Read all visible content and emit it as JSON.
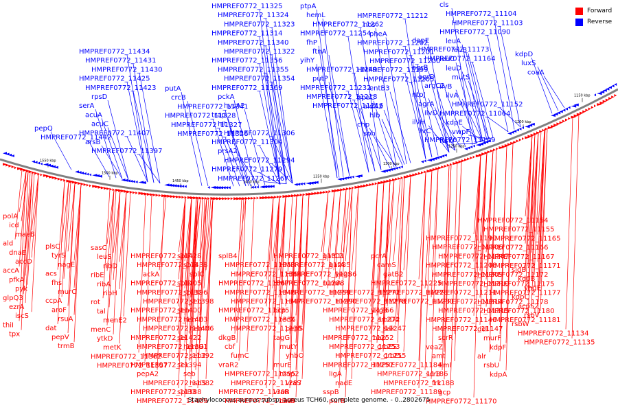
{
  "caption": "Staphylococcus aureus subsp. aureus TCH60, complete genome. - 0..2802675",
  "legend": [
    {
      "label": "Forward",
      "color": "#ff0000"
    },
    {
      "label": "Reverse",
      "color": "#0000ff"
    }
  ],
  "colors": {
    "forward": "#ff0000",
    "reverse": "#0000ff",
    "backbone": "#808080"
  },
  "ticks": [
    "1550 kbp",
    "1500 kbp",
    "1450 kbp",
    "1400 kbp",
    "1350 kbp",
    "1300 kbp",
    "1250 kbp",
    "1200 kbp",
    "1150 kbp"
  ],
  "reverse_labels": [
    "pepQ",
    "HMPREF0772_11442",
    "HMPREF0772_11434",
    "HMPREF0772_11431",
    "HMPREF0772_11430",
    "HMPREF0772_11425",
    "HMPREF0772_11423",
    "rpsD",
    "serA",
    "acuA",
    "acuC",
    "HMPREF0772_11407",
    "arsB",
    "HMPREF0772_11397",
    "putA",
    "crcB",
    "HMPREF0772_11341",
    "HMPREF0772_11328",
    "HMPREF0772_11327",
    "HMPREF0772_11326",
    "HMPREF0772_11325",
    "HMPREF0772_11324",
    "HMPREF0772_11323",
    "HMPREF0772_11314",
    "HMPREF0772_11340",
    "HMPREF0772_11322",
    "HMPREF0772_11356",
    "HMPREF0772_11355",
    "HMPREF0772_11354",
    "HMPREF0772_11369",
    "pckA",
    "hysA2",
    "trap",
    "hit",
    "HMPREF0772_11306",
    "HMPREF0772_11304",
    "prsA2",
    "HMPREF0772_11294",
    "HMPREF0772_11279",
    "HMPREF0772_11267",
    "ptpA",
    "hemL",
    "HMPREF0772_11262",
    "HMPREF0772_11254",
    "fhP",
    "ftnA",
    "yihY",
    "HMPREF0772_11249",
    "putP",
    "HMPREF0772_11232",
    "HMPREF0772_11218",
    "HMPREF0772_11216",
    "HMPREF0772_11212",
    "nos",
    "pheA",
    "HMPREF0772_11202",
    "HMPREF0772_11201",
    "HMPREF0772_11200",
    "HMPREF0772_11199",
    "HMPREF0772_11205",
    "entB3",
    "ppaC",
    "aldA2",
    "hlb",
    "chp",
    "sph",
    "dapE",
    "HMPREF0772_11173",
    "HMPREF0772_11164",
    "agrB",
    "agrD",
    "argC2",
    "ntpJ",
    "agrA",
    "ilvD",
    "ilvH",
    "ilvC",
    "HMPREF0772_11109",
    "cls",
    "HMPREF0772_11104",
    "HMPREF0772_11103",
    "HMPREF0772_11090",
    "leuA",
    "leuB",
    "leuC",
    "leuD",
    "mutS",
    "ilvB",
    "ilvA",
    "HMPREF0772_11152",
    "HMPREF0772_11064",
    "kdpE",
    "vwpF",
    "ftsW",
    "kdpD",
    "luxS",
    "coaA"
  ],
  "forward_labels": [
    "polA",
    "icd",
    "maeB",
    "ald",
    "dnaE",
    "accD",
    "accA",
    "pfkA",
    "pyk",
    "glpQ3",
    "ezrA",
    "iscS",
    "thiI",
    "tpx",
    "plsC",
    "tyrS",
    "nagE",
    "acs",
    "fhs",
    "murC",
    "ccpA",
    "aroF",
    "rsuA",
    "dat",
    "pepV",
    "trmB",
    "sasC",
    "leuS",
    "ribD",
    "ribE",
    "ribA",
    "ribH",
    "rot",
    "tal",
    "menE2",
    "menC",
    "ytkD",
    "metK",
    "HMPREF0772_11362",
    "HMPREF0772_11357",
    "HMPREF0772_11428",
    "HMPREF0772_11438",
    "ackA",
    "HMPREF0772_11405",
    "HMPREF0772_11396",
    "HMPREF0772_11398",
    "HMPREF0772_11400",
    "HMPREF0772_11403",
    "HMPREF0772_11406",
    "HMPREF0772_11422",
    "HMPREF0772_11391",
    "HMPREF0772_11392",
    "HMPREF0772_11394",
    "pepA2",
    "HMPREF0772_11382",
    "HMPREF0772_11388",
    "HMPREF0772_11409",
    "splF",
    "splB",
    "splC",
    "splD",
    "splB2",
    "seo",
    "sen",
    "hemE",
    "hemH",
    "sei",
    "hemG",
    "seb2",
    "sek",
    "seb",
    "hsdS",
    "splB3",
    "splB4",
    "HMPREF0772_11353",
    "HMPREF0772_11364",
    "HMPREF0772_11367",
    "HMPREF0772_11346",
    "HMPREF0772_11347",
    "HMPREF0772_11335",
    "HMPREF0772_11336",
    "HMPREF0772_11338",
    "dkgB",
    "cbf",
    "fumC",
    "vraR2",
    "HMPREF0772_11295",
    "HMPREF0772_11287",
    "HMPREF0772_11308",
    "HMPREF0772_11309",
    "HMPREF0772_11297",
    "HMPREF0772_11301",
    "HMPREF0772_11285",
    "HMPREF0772_11286",
    "HMPREF0772_11288",
    "HMPREF0772_11289",
    "HMPREF0772_11290",
    "bcp",
    "recX",
    "pepS",
    "tagG",
    "mutY",
    "yhbO",
    "murE",
    "map2",
    "vraS",
    "vraR",
    "dinB",
    "gatC2",
    "gatA",
    "yegS",
    "rumA",
    "HMPREF0772_11277",
    "HMPREF0772_11278",
    "HMPREF0772_11266",
    "HMPREF0772_11272",
    "HMPREF0772_11247",
    "HMPREF0772_11252",
    "HMPREF0772_11253",
    "HMPREF0772_11255",
    "HMPREF0772_11257",
    "ligA",
    "nadE",
    "sspB",
    "purB",
    "pcrB",
    "pcrA",
    "camS",
    "gatB2",
    "HMPREF0772_11225",
    "HMPREF0772_11228",
    "HMPREF0772_11231",
    "ykgB",
    "amiD4",
    "sak",
    "map",
    "groES",
    "groEL",
    "HMPREF0772_11184",
    "HMPREF0772_11186",
    "HMPREF0772_11188",
    "HMPREF0772_11189",
    "HMPREF0772_11190",
    "HMPREF0772_11206",
    "HMPREF0772_11207",
    "HMPREF0772_11208",
    "HMPREF0772_11209",
    "HMPREF0772_11210",
    "HMPREF0772_11211",
    "HMPREF0772_11214",
    "HMPREF0772_11215",
    "HMPREF0772_11146",
    "HMPREF0772_11147",
    "scrR",
    "veaZ",
    "amt",
    "riml",
    "scrB",
    "frk",
    "gcp",
    "HMPREF0772_11170",
    "HMPREF0772_11153",
    "HMPREF0772_11154",
    "HMPREF0772_11155",
    "HMPREF0772_11165",
    "HMPREF0772_11166",
    "HMPREF0772_11167",
    "HMPREF0772_11171",
    "HMPREF0772_11172",
    "HMPREF0772_11175",
    "HMPREF0772_11177",
    "HMPREF0772_11178",
    "HMPREF0772_11180",
    "HMPREF0772_11181",
    "ddl",
    "murF",
    "kdpF",
    "alr",
    "rsbU",
    "kdpA",
    "sigB",
    "kdpB",
    "yhgE",
    "kdpC",
    "acpS2",
    "rsbV",
    "rsbW",
    "HMPREF0772_11134",
    "HMPREF0772_11135"
  ]
}
